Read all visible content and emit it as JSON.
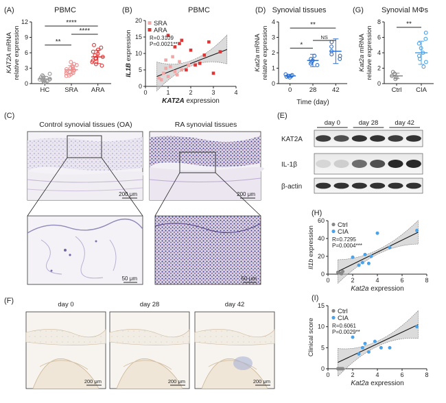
{
  "panels": {
    "A": {
      "letter": "(A)",
      "title": "PBMC"
    },
    "B": {
      "letter": "(B)",
      "title": "PBMC"
    },
    "C": {
      "letter": "(C)",
      "left_title": "Control synovial tissues (OA)",
      "right_title": "RA synovial tissues",
      "scale_top": "200 μm",
      "scale_bottom": "50 μm"
    },
    "D": {
      "letter": "(D)",
      "title": "Synovial tissues"
    },
    "E": {
      "letter": "(E)",
      "days": [
        "day 0",
        "day 28",
        "day 42"
      ],
      "bands": [
        "KAT2A",
        "IL-1β",
        "β-actin"
      ]
    },
    "F": {
      "letter": "(F)",
      "days": [
        "day 0",
        "day 28",
        "day 42"
      ],
      "scale": "200 μm"
    },
    "G": {
      "letter": "(G)",
      "title": "Synovial MΦs"
    },
    "H": {
      "letter": "(H)"
    },
    "I": {
      "letter": "(I)"
    }
  },
  "chart_data": [
    {
      "panel": "A",
      "type": "scatter",
      "ylabel_gene": "KAT2A",
      "ylabel_rest": " mRNA",
      "ylabel2": "relative expression",
      "categories": [
        "HC",
        "SRA",
        "ARA"
      ],
      "ylim": [
        0,
        12
      ],
      "yticks": [
        0,
        3,
        6,
        9,
        12
      ],
      "colors": [
        "#999999",
        "#f08c8c",
        "#e03535"
      ],
      "series": [
        {
          "values": [
            0.4,
            0.6,
            0.8,
            1.0,
            1.2,
            0.5,
            0.9,
            1.4,
            0.7,
            1.1,
            0.3,
            1.6,
            0.8,
            1.9
          ]
        },
        {
          "values": [
            1.5,
            2.0,
            2.4,
            2.8,
            3.2,
            1.8,
            2.6,
            3.6,
            2.2,
            3.0,
            4.2,
            1.6,
            2.9,
            3.4,
            2.1,
            2.5,
            3.8
          ]
        },
        {
          "values": [
            3.5,
            4.2,
            4.8,
            5.5,
            6.2,
            7.0,
            3.8,
            5.0,
            5.8,
            6.6,
            4.5,
            5.2,
            7.5
          ]
        }
      ],
      "means": [
        0.9,
        2.7,
        5.2
      ],
      "sds": [
        0.5,
        0.8,
        1.3
      ],
      "sig": [
        {
          "from": 0,
          "to": 1,
          "label": "**",
          "y": 7.5
        },
        {
          "from": 1,
          "to": 2,
          "label": "****",
          "y": 9.6
        },
        {
          "from": 0,
          "to": 2,
          "label": "****",
          "y": 11.2
        }
      ]
    },
    {
      "panel": "B",
      "type": "scatter",
      "xlabel": "KAT2A",
      "xlabel_rest": " expression",
      "ylabel": "IL1B",
      "ylabel_rest": " expression",
      "xlim": [
        0,
        4
      ],
      "ylim": [
        0,
        20
      ],
      "xticks": [
        0,
        1,
        2,
        3,
        4
      ],
      "yticks": [
        0,
        5,
        10,
        15,
        20
      ],
      "legend": [
        "SRA",
        "ARA"
      ],
      "colors": [
        "#f2a7a7",
        "#e03535"
      ],
      "annotation": [
        "R=0.3109",
        "P=0.0021**"
      ],
      "fit": {
        "x": [
          0.5,
          3.6
        ],
        "y": [
          3.0,
          11.2
        ]
      },
      "series": [
        {
          "x": [
            0.6,
            0.8,
            0.9,
            1.0,
            1.1,
            1.3,
            1.5,
            0.7,
            1.2,
            1.6,
            1.9,
            0.9,
            1.4
          ],
          "y": [
            2.5,
            4.0,
            5.5,
            3.0,
            6.0,
            4.5,
            7.5,
            2.0,
            9.0,
            5.0,
            6.5,
            8.0,
            3.5
          ]
        },
        {
          "x": [
            1.0,
            1.5,
            2.0,
            2.4,
            2.8,
            3.3,
            1.8,
            2.2,
            1.3,
            2.6,
            3.0,
            1.6
          ],
          "y": [
            15.5,
            13.0,
            11.0,
            7.0,
            13.5,
            10.5,
            5.0,
            6.5,
            12.0,
            9.5,
            4.0,
            14.0
          ]
        }
      ]
    },
    {
      "panel": "D",
      "type": "scatter",
      "ylabel_gene": "Kat2a",
      "ylabel_rest": " mRNA",
      "ylabel2": "relative expression",
      "xlabel": "Time (day)",
      "categories": [
        "0",
        "28",
        "42"
      ],
      "ylim": [
        0,
        4
      ],
      "yticks": [
        0,
        1,
        2,
        3,
        4
      ],
      "color": "#2e6fce",
      "series": [
        {
          "values": [
            0.5,
            0.4,
            0.6,
            0.5,
            0.45,
            0.55
          ]
        },
        {
          "values": [
            1.2,
            1.4,
            1.6,
            1.8,
            1.5,
            1.3
          ]
        },
        {
          "values": [
            1.6,
            1.8,
            2.1,
            2.4,
            2.7,
            1.9
          ]
        }
      ],
      "means": [
        0.5,
        1.5,
        2.1
      ],
      "sds": [
        0.1,
        0.4,
        0.8
      ],
      "sig": [
        {
          "from": 1,
          "to": 2,
          "label": "NS",
          "y": 2.8
        },
        {
          "from": 0,
          "to": 1,
          "label": "*",
          "y": 2.3
        },
        {
          "from": 0,
          "to": 2,
          "label": "**",
          "y": 3.6
        }
      ]
    },
    {
      "panel": "G",
      "type": "scatter",
      "ylabel_gene": "Kat2a",
      "ylabel_rest": " mRNA",
      "ylabel2": "relative expression",
      "categories": [
        "Ctrl",
        "CIA"
      ],
      "ylim": [
        0,
        8
      ],
      "yticks": [
        0,
        2,
        4,
        6,
        8
      ],
      "colors": [
        "#888888",
        "#4aa3e8"
      ],
      "series": [
        {
          "values": [
            0.6,
            0.8,
            1.0,
            1.3,
            1.5
          ]
        },
        {
          "values": [
            2.2,
            2.8,
            3.2,
            3.6,
            4.0,
            4.6,
            5.2,
            5.8,
            6.6
          ]
        }
      ],
      "means": [
        1.0,
        4.0
      ],
      "sds": [
        0.35,
        1.5
      ],
      "sig": [
        {
          "from": 0,
          "to": 1,
          "label": "**",
          "y": 7.3
        }
      ]
    },
    {
      "panel": "H",
      "type": "scatter",
      "xlabel": "Kat2a",
      "xlabel_rest": " expression",
      "ylabel": "Il1b",
      "ylabel_rest": "  expression",
      "xlim": [
        0,
        8
      ],
      "ylim": [
        0,
        60
      ],
      "xticks": [
        0,
        2,
        4,
        6,
        8
      ],
      "yticks": [
        0,
        20,
        40,
        60
      ],
      "legend": [
        "Ctrl",
        "CIA"
      ],
      "colors": [
        "#888888",
        "#4aa3e8"
      ],
      "annotation": [
        "R=0.7295",
        "P=0.0004***"
      ],
      "fit": {
        "x": [
          0.8,
          7.3
        ],
        "y": [
          3.0,
          47.0
        ]
      },
      "series": [
        {
          "x": [
            0.8,
            1.0,
            1.2,
            1.1,
            0.9
          ],
          "y": [
            2.0,
            1.0,
            3.0,
            0.5,
            1.5
          ]
        },
        {
          "x": [
            2.0,
            2.5,
            2.8,
            3.0,
            3.3,
            3.5,
            4.0,
            5.0,
            7.2
          ],
          "y": [
            19.0,
            10.0,
            13.0,
            22.0,
            12.0,
            20.0,
            46.0,
            30.0,
            49.0
          ]
        }
      ]
    },
    {
      "panel": "I",
      "type": "scatter",
      "xlabel": "Kat2a",
      "xlabel_rest": " expression",
      "ylabel": "Clinical score",
      "xlim": [
        0,
        8
      ],
      "ylim": [
        0,
        15
      ],
      "xticks": [
        0,
        2,
        4,
        6,
        8
      ],
      "yticks": [
        0,
        5,
        10,
        15
      ],
      "legend": [
        "Ctrl",
        "CIA"
      ],
      "colors": [
        "#888888",
        "#4aa3e8"
      ],
      "annotation": [
        "R=0.6061",
        "P=0.0029**"
      ],
      "fit": {
        "x": [
          0.8,
          7.3
        ],
        "y": [
          1.5,
          10.5
        ]
      },
      "series": [
        {
          "x": [
            0.8,
            1.0,
            1.2,
            1.1,
            0.9
          ],
          "y": [
            0.0,
            0.0,
            0.0,
            0.0,
            0.0
          ]
        },
        {
          "x": [
            2.0,
            2.5,
            2.8,
            3.0,
            3.3,
            3.8,
            4.3,
            5.0,
            7.2
          ],
          "y": [
            7.5,
            3.5,
            5.0,
            6.0,
            4.0,
            6.5,
            5.0,
            5.0,
            10.0
          ]
        }
      ]
    }
  ]
}
